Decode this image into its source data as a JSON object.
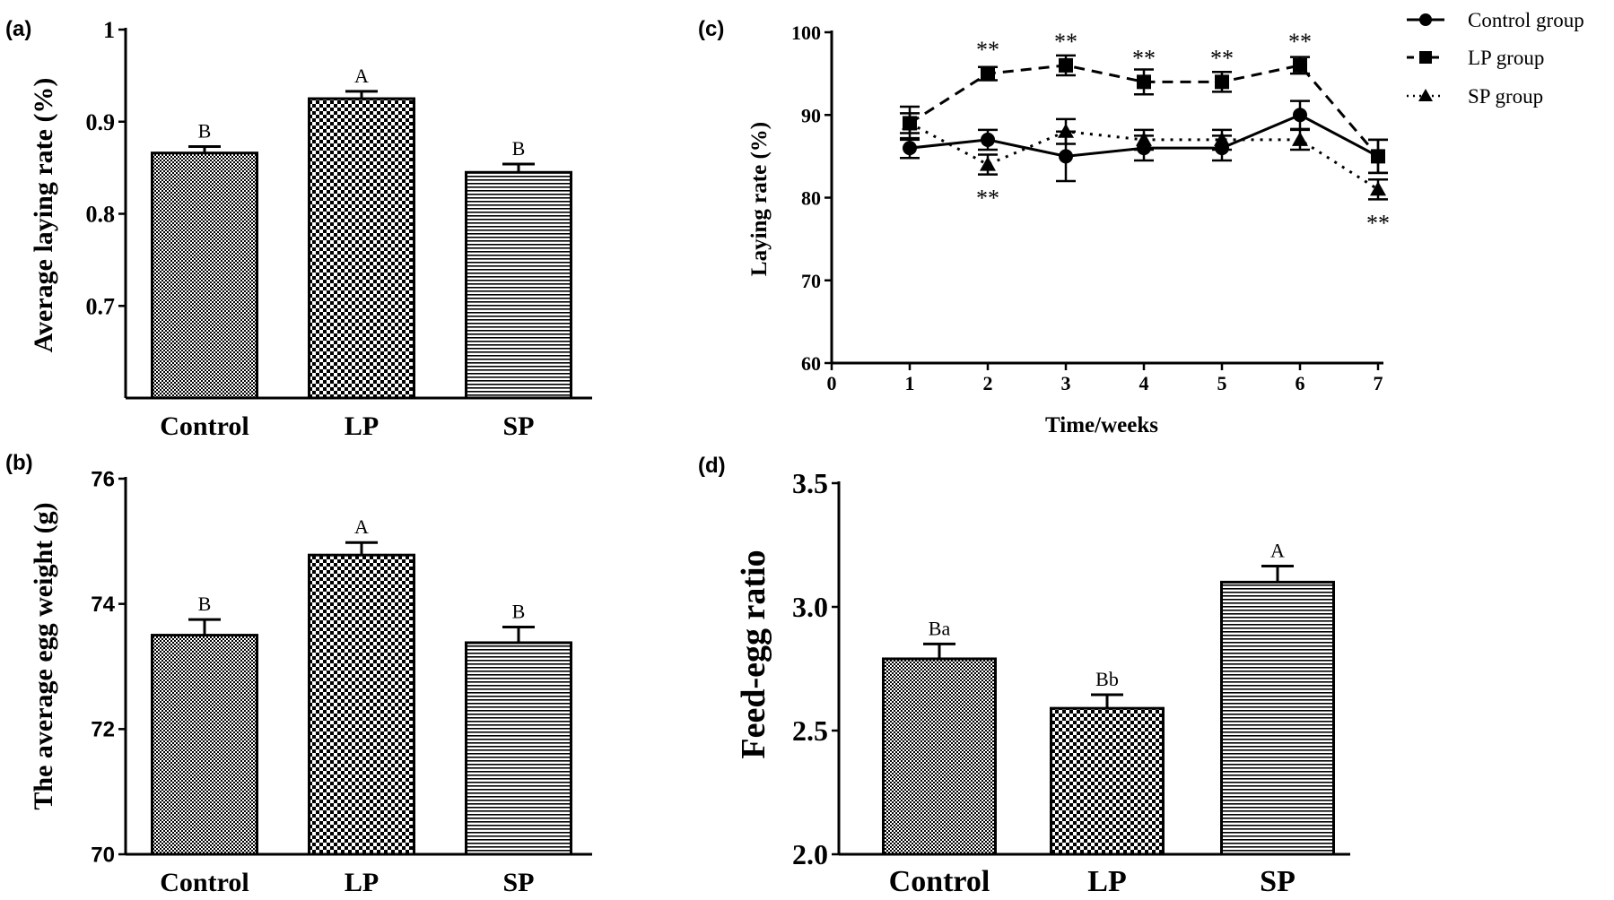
{
  "chart_data": [
    {
      "panel": "(a)",
      "type": "bar",
      "categories": [
        "Control",
        "LP",
        "SP"
      ],
      "values": [
        0.866,
        0.925,
        0.845
      ],
      "errors": [
        0.007,
        0.008,
        0.009
      ],
      "annotations": [
        "B",
        "A",
        "B"
      ],
      "patterns": [
        "dots-fine",
        "checker",
        "hlines"
      ],
      "ylabel": "Average laying rate (%)",
      "yticks": [
        0.7,
        0.8,
        0.9,
        1.0
      ],
      "ylim": [
        0.6,
        1.0
      ]
    },
    {
      "panel": "(b)",
      "type": "bar",
      "categories": [
        "Control",
        "LP",
        "SP"
      ],
      "values": [
        73.5,
        74.78,
        73.38
      ],
      "errors": [
        0.25,
        0.2,
        0.25
      ],
      "annotations": [
        "B",
        "A",
        "B"
      ],
      "patterns": [
        "dots-fine",
        "checker",
        "hlines"
      ],
      "ylabel": "The average egg weight (g)",
      "yticks": [
        70,
        72,
        74,
        76
      ],
      "ylim": [
        70,
        76
      ]
    },
    {
      "panel": "(c)",
      "type": "line",
      "xlabel": "Time/weeks",
      "ylabel": "Laying rate (%)",
      "xticks": [
        0,
        1,
        2,
        3,
        4,
        5,
        6,
        7
      ],
      "yticks": [
        60,
        70,
        80,
        90,
        100
      ],
      "xlim": [
        0,
        7
      ],
      "ylim": [
        60,
        100
      ],
      "x": [
        1,
        2,
        3,
        4,
        5,
        6,
        7
      ],
      "series": [
        {
          "name": "Control group",
          "marker": "circle",
          "dash": "solid",
          "values": [
            86,
            87,
            85,
            86,
            86,
            90,
            85
          ],
          "errors": [
            1.2,
            1.2,
            3,
            1.5,
            1.5,
            1.7,
            2
          ]
        },
        {
          "name": "LP group",
          "marker": "square",
          "dash": "dashed",
          "values": [
            89,
            95,
            96,
            94,
            94,
            96,
            85
          ],
          "errors": [
            2,
            0.8,
            1.2,
            1.5,
            1.2,
            1,
            2
          ]
        },
        {
          "name": "SP group",
          "marker": "triangle",
          "dash": "dotted",
          "values": [
            89,
            84,
            88,
            87,
            87,
            87,
            81
          ],
          "errors": [
            1.2,
            1.2,
            1.5,
            1.2,
            1.2,
            1.2,
            1.2
          ]
        }
      ],
      "significance": [
        {
          "x": 2,
          "y": 95,
          "text": "**",
          "pos": "above"
        },
        {
          "x": 3,
          "y": 96,
          "text": "**",
          "pos": "above"
        },
        {
          "x": 4,
          "y": 94,
          "text": "**",
          "pos": "above"
        },
        {
          "x": 5,
          "y": 94,
          "text": "**",
          "pos": "above"
        },
        {
          "x": 6,
          "y": 96,
          "text": "**",
          "pos": "above"
        },
        {
          "x": 2,
          "y": 84,
          "text": "**",
          "pos": "below"
        },
        {
          "x": 7,
          "y": 81,
          "text": "**",
          "pos": "below"
        }
      ]
    },
    {
      "panel": "(d)",
      "type": "bar",
      "categories": [
        "Control",
        "LP",
        "SP"
      ],
      "values": [
        2.79,
        2.59,
        3.1
      ],
      "errors": [
        0.06,
        0.055,
        0.065
      ],
      "annotations": [
        "Ba",
        "Bb",
        "A"
      ],
      "patterns": [
        "dots-fine",
        "checker",
        "hlines"
      ],
      "ylabel": "Feed-egg ratio",
      "yticks": [
        "2.0",
        "2.5",
        "3.0",
        "3.5"
      ],
      "ylim": [
        2.0,
        3.5
      ]
    }
  ]
}
